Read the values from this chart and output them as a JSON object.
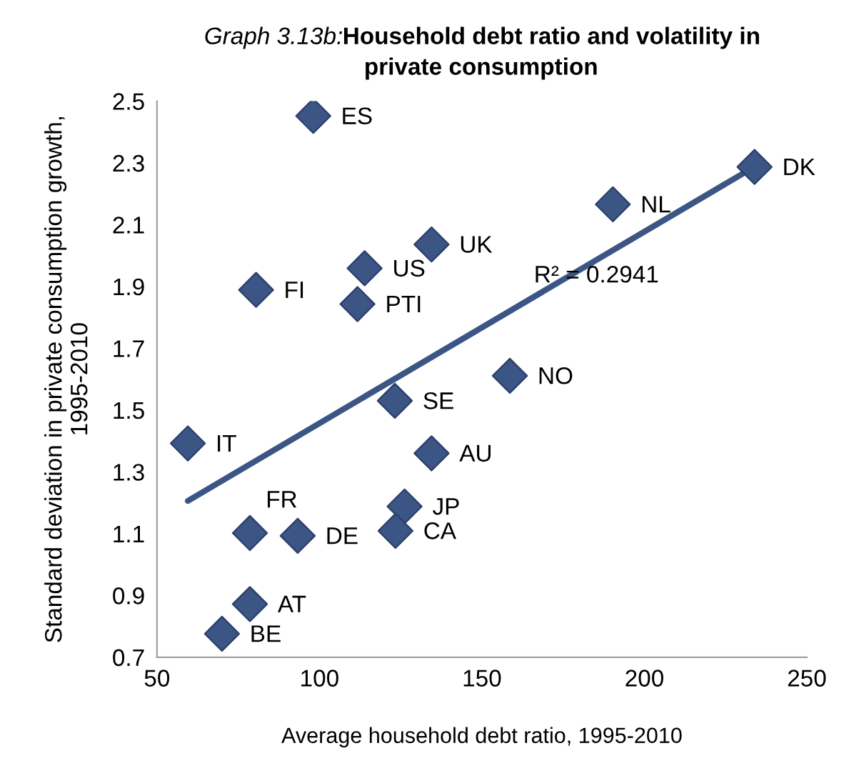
{
  "chart_data": {
    "type": "scatter",
    "title": "Graph 3.13b:Household debt ratio and volatility in\nprivate consumption",
    "xlabel": "Average household debt ratio, 1995-2010",
    "ylabel": "Standard deviation in private consumption growth,\n1995-2010",
    "xlim": [
      50,
      250
    ],
    "xticks": [
      50,
      100,
      150,
      200,
      250
    ],
    "ylim": [
      0.7,
      2.5
    ],
    "yticks": [
      0.7,
      0.9,
      1.1,
      1.3,
      1.5,
      1.7,
      1.9,
      2.1,
      2.3,
      2.5
    ],
    "grid": false,
    "legend": false,
    "series": [
      {
        "marker": "diamond",
        "color": "#3b5585",
        "x": [
          98.1,
          233.9,
          190.3,
          134.5,
          113.9,
          80.5,
          111.7,
          158.6,
          123.2,
          59.5,
          134.5,
          126.2,
          78.6,
          93.3,
          123.4,
          78.6,
          70.0
        ],
        "values": [
          2.452,
          2.287,
          2.166,
          2.036,
          1.959,
          1.889,
          1.843,
          1.611,
          1.53,
          1.392,
          1.36,
          1.188,
          1.102,
          1.093,
          1.109,
          0.872,
          0.776
        ]
      },
      {
        "type": "line",
        "color": "#3b5585",
        "x": [
          59.5,
          231.2
        ],
        "values": [
          1.206,
          2.271
        ]
      }
    ],
    "annotations": [
      {
        "text": "ES",
        "x": 98.1,
        "y": 2.452
      },
      {
        "text": "DK",
        "x": 233.9,
        "y": 2.287
      },
      {
        "text": "NL",
        "x": 190.3,
        "y": 2.166
      },
      {
        "text": "UK",
        "x": 134.5,
        "y": 2.036
      },
      {
        "text": "US",
        "x": 113.9,
        "y": 1.959
      },
      {
        "text": "FI",
        "x": 80.5,
        "y": 1.889
      },
      {
        "text": "PTI",
        "x": 111.7,
        "y": 1.843
      },
      {
        "text": "NO",
        "x": 158.6,
        "y": 1.611
      },
      {
        "text": "SE",
        "x": 123.2,
        "y": 1.53
      },
      {
        "text": "IT",
        "x": 59.5,
        "y": 1.392
      },
      {
        "text": "AU",
        "x": 134.5,
        "y": 1.36
      },
      {
        "text": "JP",
        "x": 126.2,
        "y": 1.188
      },
      {
        "text": "FR",
        "x": 78.6,
        "y": 1.102
      },
      {
        "text": "DE",
        "x": 93.3,
        "y": 1.093
      },
      {
        "text": "CA",
        "x": 123.4,
        "y": 1.109
      },
      {
        "text": "AT",
        "x": 78.6,
        "y": 0.872
      },
      {
        "text": "BE",
        "x": 70.0,
        "y": 0.776
      },
      "R² = 0.2941"
    ]
  }
}
